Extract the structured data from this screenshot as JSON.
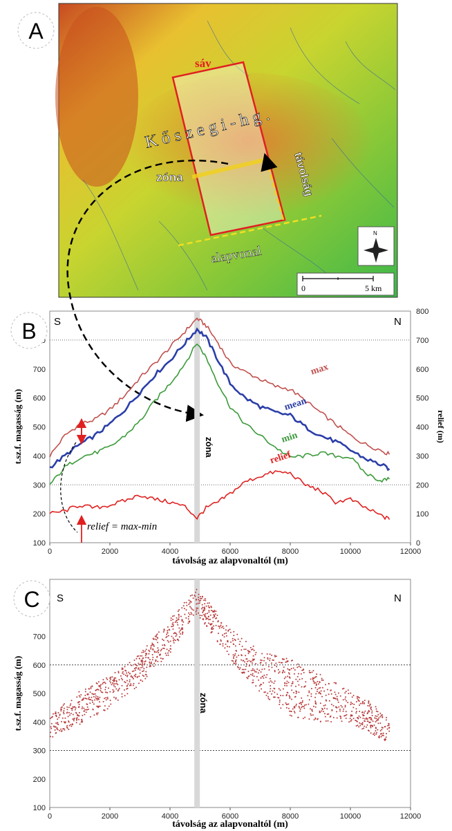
{
  "panels": {
    "a": {
      "letter": "A",
      "labels": {
        "range": "K ő s z e g i - h g .",
        "strip": "sáv",
        "zone": "zóna",
        "distance": "távolság",
        "baseline": "alapvonal"
      },
      "north": "N",
      "scalebar": {
        "start": "0",
        "end": "5 km"
      }
    },
    "b": {
      "letter": "B",
      "corner_left": "S",
      "corner_right": "N",
      "xlabel": "távolság az alapvonaltól (m)",
      "ylabel": "t.sz.f. magasság (m)",
      "y2label": "relief (m)",
      "zone_label": "zóna",
      "formula": "relief = max-min",
      "xticks": [
        "0",
        "2000",
        "4000",
        "6000",
        "8000",
        "10000",
        "12000"
      ],
      "yticks": [
        "100",
        "200",
        "300",
        "400",
        "500",
        "600",
        "700",
        "800"
      ],
      "y2ticks": [
        "0",
        "100",
        "200",
        "300",
        "400",
        "500",
        "600",
        "700",
        "800"
      ]
    },
    "c": {
      "letter": "C",
      "corner_left": "S",
      "corner_right": "N",
      "xlabel": "távolság az alapvonaltól (m)",
      "ylabel": "t.sz.f. magasság (m)",
      "zone_label": "zóna",
      "xticks": [
        "0",
        "2000",
        "4000",
        "6000",
        "8000",
        "10000",
        "12000"
      ],
      "yticks": [
        "100",
        "200",
        "300",
        "400",
        "500",
        "600",
        "700",
        "800"
      ]
    }
  },
  "chart_data": [
    {
      "type": "line",
      "xlim": [
        0,
        12000
      ],
      "ylim": [
        100,
        900
      ],
      "y2lim": [
        0,
        800
      ],
      "grid": "dotted horizontal at 300 and 800",
      "zone_x": 4900,
      "series": [
        {
          "name": "max",
          "color": "#c0504d",
          "x": [
            0,
            500,
            1000,
            1500,
            2000,
            2500,
            3000,
            3500,
            4000,
            4500,
            4900,
            5200,
            5600,
            6000,
            6500,
            7000,
            7500,
            8000,
            8500,
            9000,
            9500,
            10000,
            10500,
            11000,
            11300
          ],
          "y": [
            400,
            470,
            510,
            525,
            560,
            610,
            670,
            720,
            775,
            830,
            875,
            850,
            790,
            720,
            690,
            665,
            640,
            630,
            590,
            550,
            510,
            470,
            440,
            420,
            405
          ]
        },
        {
          "name": "mean",
          "color": "#2b3ea8",
          "x": [
            0,
            500,
            1000,
            1500,
            2000,
            2500,
            3000,
            3500,
            4000,
            4500,
            4900,
            5200,
            5600,
            6000,
            6500,
            7000,
            7500,
            8000,
            8500,
            9000,
            9500,
            10000,
            10500,
            11000,
            11300
          ],
          "y": [
            360,
            400,
            440,
            470,
            510,
            560,
            620,
            680,
            730,
            790,
            838,
            810,
            730,
            650,
            600,
            570,
            550,
            540,
            500,
            470,
            450,
            420,
            390,
            370,
            355
          ]
        },
        {
          "name": "min",
          "color": "#3a9a3a",
          "x": [
            0,
            500,
            1000,
            1500,
            2000,
            2500,
            3000,
            3500,
            4000,
            4500,
            4900,
            5200,
            5600,
            6000,
            6500,
            7000,
            7500,
            8000,
            8500,
            9000,
            9500,
            10000,
            10500,
            11000,
            11300
          ],
          "y": [
            300,
            360,
            395,
            410,
            430,
            470,
            520,
            590,
            650,
            720,
            790,
            740,
            650,
            570,
            510,
            470,
            430,
            395,
            400,
            410,
            400,
            395,
            340,
            315,
            320
          ]
        },
        {
          "name": "relief",
          "color": "#e02020",
          "x": [
            0,
            500,
            1000,
            1500,
            2000,
            2500,
            3000,
            3500,
            4000,
            4500,
            4900,
            5200,
            5600,
            6000,
            6500,
            7000,
            7500,
            8000,
            8500,
            9000,
            9500,
            10000,
            10500,
            11000,
            11300
          ],
          "y": [
            100,
            110,
            130,
            120,
            130,
            145,
            165,
            150,
            140,
            125,
            85,
            120,
            140,
            170,
            210,
            230,
            245,
            240,
            200,
            180,
            140,
            150,
            120,
            95,
            80
          ]
        }
      ]
    },
    {
      "type": "scatter",
      "xlim": [
        0,
        12000
      ],
      "ylim": [
        100,
        900
      ],
      "grid": "dotted horizontal at 300 and 600",
      "zone_x": 4900,
      "series": [
        {
          "name": "",
          "color": "#b83a3a",
          "envelope_x": [
            0,
            1000,
            2000,
            3000,
            4000,
            4900,
            6000,
            7000,
            8000,
            9000,
            10000,
            11000,
            11300
          ],
          "envelope_low": [
            340,
            390,
            450,
            530,
            640,
            780,
            620,
            500,
            420,
            400,
            390,
            340,
            330
          ],
          "envelope_high": [
            420,
            510,
            560,
            640,
            760,
            870,
            730,
            650,
            620,
            570,
            510,
            450,
            400
          ]
        }
      ]
    }
  ]
}
